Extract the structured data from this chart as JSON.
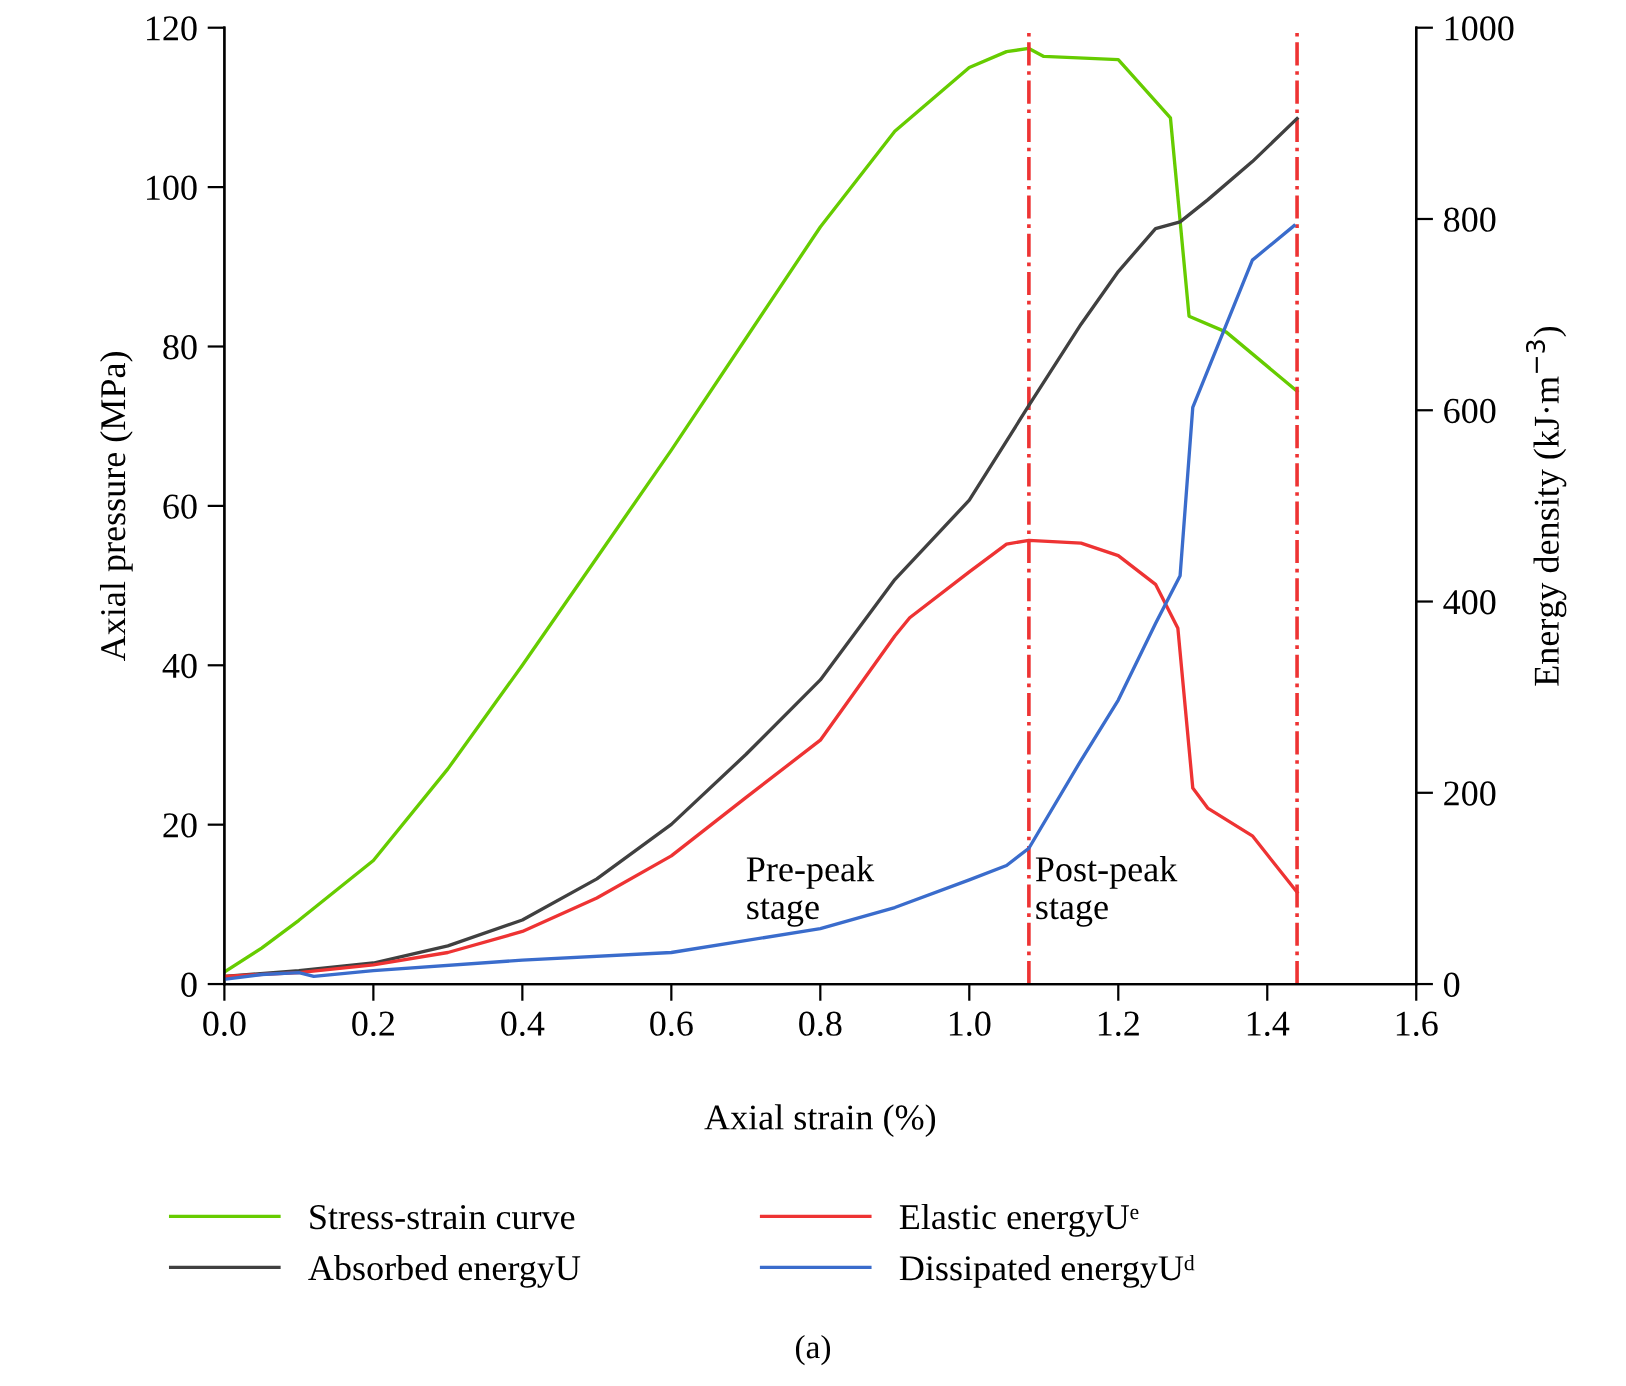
{
  "chart_data": {
    "type": "line",
    "xlabel": "Axial strain (%)",
    "ylabel": "Axial pressure (MPa)",
    "y2label": "Energy density (kJ·m$^{−3}$)",
    "xlim": [
      0,
      1.6
    ],
    "xticks": [
      {
        "value": 0,
        "label": "0.0"
      },
      0.2,
      0.4,
      0.6,
      0.8,
      {
        "value": 1,
        "label": "1.0"
      },
      1.2,
      1.4,
      1.6
    ],
    "ylim": [
      0,
      120
    ],
    "yticks": [
      0,
      20,
      40,
      60,
      80,
      100,
      120
    ],
    "y2lim": [
      0,
      1000
    ],
    "y2ticks": [
      0,
      200,
      400,
      600,
      800,
      1000
    ],
    "grid": false,
    "legend": "bottom",
    "marker": "none",
    "line_style": "solid",
    "series": [
      {
        "name": "Stress-strain curve",
        "color": "#66cc00",
        "x": [
          0,
          0.05,
          0.1,
          0.2,
          0.3,
          0.4,
          0.5,
          0.6,
          0.7,
          0.8,
          0.9,
          1.0,
          1.05,
          1.08,
          1.1,
          1.2,
          1.27,
          1.295,
          1.345,
          1.44
        ],
        "values": [
          1.5,
          4.5,
          8,
          15.5,
          27,
          40,
          53.5,
          67,
          81,
          95,
          107,
          115,
          117,
          117.4,
          116.4,
          116,
          108.7,
          83.8,
          81.8,
          74.4
        ]
      },
      {
        "name": "Absorbed energyU",
        "color": "#404040",
        "axis": "y2",
        "x": [
          0,
          0.1,
          0.2,
          0.3,
          0.4,
          0.5,
          0.6,
          0.7,
          0.8,
          0.9,
          1.0,
          1.08,
          1.15,
          1.2,
          1.25,
          1.283,
          1.32,
          1.38,
          1.44
        ],
        "values": [
          8,
          14,
          22,
          40,
          67,
          110,
          167,
          240,
          318,
          423,
          506,
          605,
          690,
          745,
          790,
          797,
          820,
          860,
          905
        ]
      },
      {
        "name": "Elastic energyUᵉ",
        "color": "#ee3333",
        "axis": "y2",
        "x": [
          0,
          0.1,
          0.2,
          0.3,
          0.4,
          0.5,
          0.6,
          0.7,
          0.8,
          0.9,
          0.92,
          1.0,
          1.05,
          1.08,
          1.15,
          1.2,
          1.25,
          1.28,
          1.3,
          1.32,
          1.38,
          1.44
        ],
        "values": [
          8,
          12,
          20,
          33,
          55,
          90,
          134,
          195,
          255,
          364,
          383,
          431,
          460,
          464,
          461,
          448,
          418,
          372,
          205,
          184,
          155,
          96
        ]
      },
      {
        "name": "Dissipated energyUᵈ",
        "color": "#3a6ccc",
        "axis": "y2",
        "x": [
          0,
          0.05,
          0.1,
          0.12,
          0.2,
          0.4,
          0.6,
          0.8,
          0.9,
          1.0,
          1.05,
          1.08,
          1.15,
          1.2,
          1.25,
          1.283,
          1.3,
          1.38,
          1.436
        ],
        "values": [
          5,
          10,
          12,
          8,
          14,
          25,
          33,
          58,
          80,
          109,
          124,
          142,
          234,
          297,
          377,
          427,
          603,
          757,
          793
        ]
      }
    ],
    "ref_lines": [
      {
        "axis": "x",
        "value": 1.08,
        "color": "#ee3333",
        "line_style": "dashdot"
      },
      {
        "axis": "x",
        "value": 1.44,
        "color": "#ee3333",
        "line_style": "dashdot"
      }
    ],
    "annotations": [
      "Pre-peak\nstage",
      "Post-peak\nstage",
      "(a)"
    ]
  }
}
